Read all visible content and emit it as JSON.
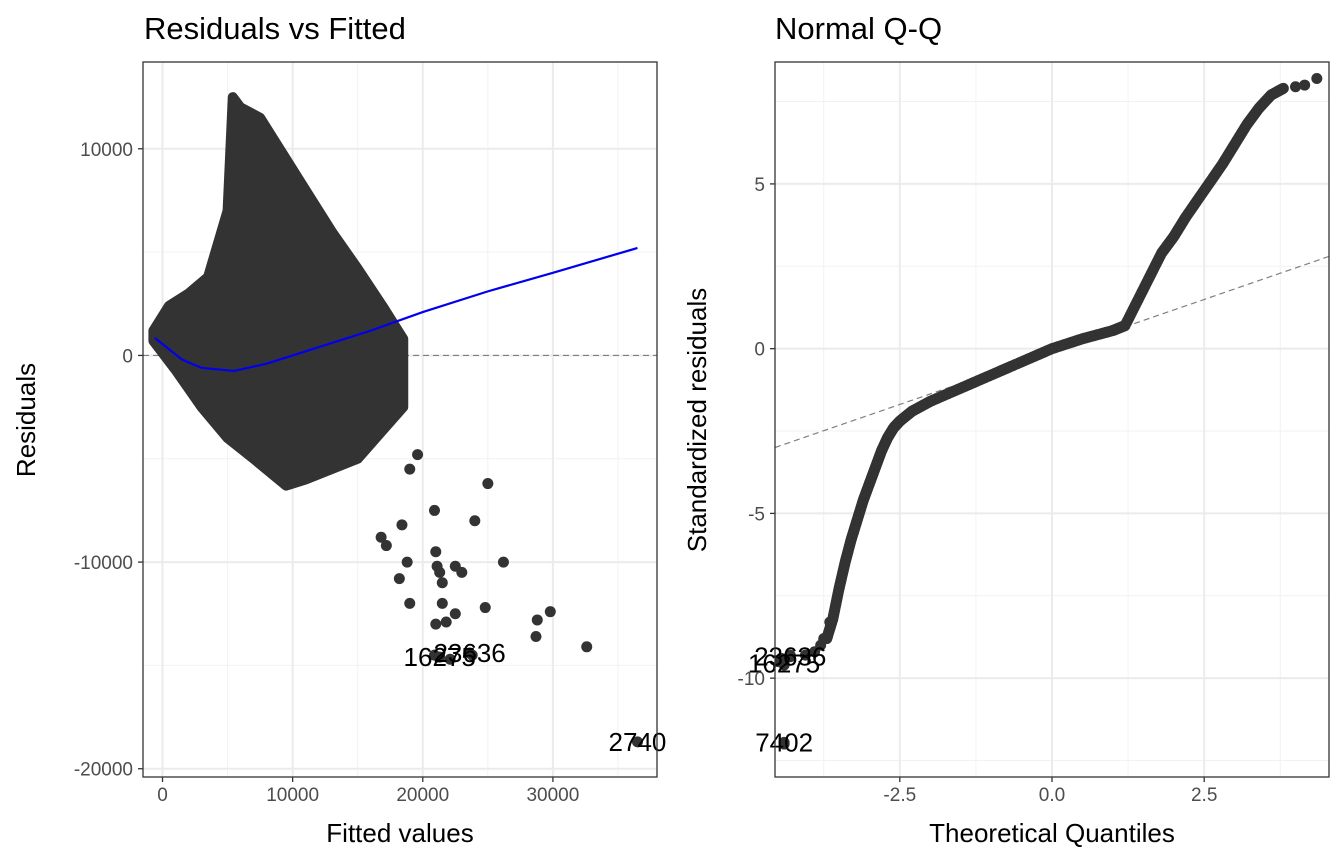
{
  "chart_data": [
    {
      "type": "scatter",
      "title": "Residuals vs Fitted",
      "xlabel": "Fitted values",
      "ylabel": "Residuals",
      "xlim": [
        -1500,
        38000
      ],
      "ylim": [
        -20400,
        14200
      ],
      "xticks": [
        0,
        10000,
        20000,
        30000
      ],
      "yticks": [
        -20000,
        -10000,
        0,
        10000
      ],
      "grid": true,
      "reference_line": {
        "y": 0,
        "style": "dashed",
        "color": "#808080"
      },
      "colors": {
        "points": "#333333",
        "smooth": "#0000ee"
      },
      "smooth_line": {
        "name": "loess",
        "x": [
          -600,
          1500,
          3000,
          5500,
          8000,
          10000,
          12000,
          16000,
          20000,
          25000,
          30000,
          36500
        ],
        "y": [
          850,
          -200,
          -600,
          -750,
          -400,
          0,
          400,
          1200,
          2100,
          3100,
          4000,
          5200
        ]
      },
      "cloud_outline": {
        "x": [
          -700,
          500,
          2000,
          3500,
          5000,
          5400,
          6000,
          7500,
          9000,
          11000,
          13000,
          15000,
          17000,
          18500,
          18500,
          15000,
          11000,
          9500,
          7000,
          5000,
          3000,
          1000,
          -700
        ],
        "y": [
          1200,
          2400,
          3000,
          3800,
          7000,
          12500,
          12000,
          11500,
          10000,
          8000,
          6000,
          4200,
          2300,
          800,
          -2500,
          -5000,
          -6000,
          -6300,
          -5000,
          -4000,
          -2500,
          -700,
          700
        ]
      },
      "points": {
        "x": [
          20900,
          21000,
          21500,
          21500,
          21300,
          21100,
          22500,
          22500,
          23000,
          24000,
          25000,
          26200,
          24800,
          28800,
          29800,
          28700,
          32600,
          23800,
          22100,
          21800,
          21000,
          20900,
          19000,
          18800,
          18200,
          18400,
          17200,
          19000,
          19600,
          16800
        ],
        "y": [
          -14500,
          -13000,
          -12000,
          -11000,
          -10500,
          -10200,
          -12500,
          -10200,
          -10500,
          -8000,
          -6200,
          -10000,
          -12200,
          -12800,
          -12400,
          -13600,
          -14100,
          -14500,
          -14700,
          -12900,
          -9500,
          -7500,
          -12000,
          -10000,
          -10800,
          -8200,
          -9200,
          -5500,
          -4800,
          -8800
        ]
      },
      "outliers": [
        {
          "label": "16275",
          "x": 21300,
          "y": -14600
        },
        {
          "label": "23636",
          "x": 23600,
          "y": -14400
        },
        {
          "label": "2740",
          "x": 36500,
          "y": -18700
        }
      ]
    },
    {
      "type": "scatter",
      "title": "Normal Q-Q",
      "xlabel": "Theoretical Quantiles",
      "ylabel": "Standardized residuals",
      "xlim": [
        -4.55,
        4.55
      ],
      "ylim": [
        -13,
        8.7
      ],
      "xticks": [
        -2.5,
        0.0,
        2.5
      ],
      "yticks": [
        -10,
        -5,
        0,
        5
      ],
      "xtick_labels": [
        "-2.5",
        "0.0",
        "2.5"
      ],
      "grid": true,
      "reference_line": {
        "x1": -4.55,
        "y1": -3.0,
        "x2": 4.55,
        "y2": 2.8,
        "style": "dashed",
        "color": "#808080"
      },
      "colors": {
        "points": "#333333"
      },
      "qq_curve": {
        "x": [
          -3.7,
          -3.6,
          -3.5,
          -3.4,
          -3.3,
          -3.2,
          -3.1,
          -3.0,
          -2.9,
          -2.8,
          -2.7,
          -2.6,
          -2.5,
          -2.3,
          -2.0,
          -1.5,
          -1.0,
          -0.5,
          0.0,
          0.5,
          1.0,
          1.2,
          1.5,
          1.8,
          2.0,
          2.2,
          2.5,
          2.8,
          3.0,
          3.2,
          3.4,
          3.6,
          3.8
        ],
        "y": [
          -8.8,
          -8.2,
          -7.3,
          -6.5,
          -5.8,
          -5.2,
          -4.6,
          -4.1,
          -3.6,
          -3.1,
          -2.7,
          -2.4,
          -2.2,
          -1.9,
          -1.6,
          -1.2,
          -0.8,
          -0.4,
          0.0,
          0.3,
          0.55,
          0.7,
          1.8,
          2.9,
          3.4,
          4.0,
          4.8,
          5.6,
          6.2,
          6.8,
          7.3,
          7.7,
          7.9
        ]
      },
      "points": {
        "x": [
          -4.5,
          -4.45,
          -4.4,
          -4.4,
          -4.3,
          -3.9,
          -3.8,
          -3.75,
          -3.65,
          -4.05,
          4.0,
          4.15,
          4.35
        ],
        "y": [
          -9.5,
          -9.4,
          -12.0,
          -9.6,
          -9.3,
          -9.2,
          -9.0,
          -8.8,
          -8.3,
          -9.3,
          7.95,
          8.0,
          8.2
        ]
      },
      "outliers": [
        {
          "label": "16275",
          "x": -4.4,
          "y": -9.55
        },
        {
          "label": "23636",
          "x": -4.3,
          "y": -9.35
        },
        {
          "label": "7402",
          "x": -4.4,
          "y": -11.95
        }
      ]
    }
  ]
}
